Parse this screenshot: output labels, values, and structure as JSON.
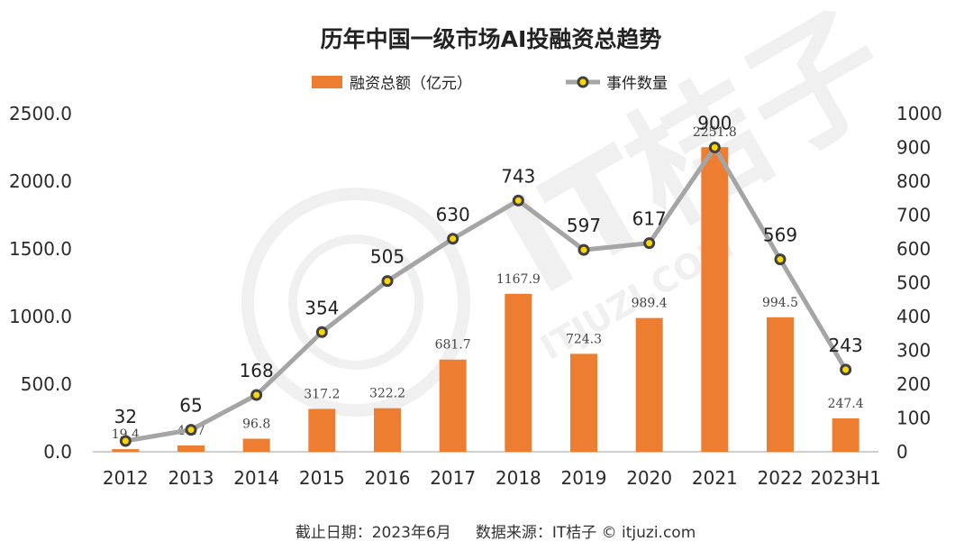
{
  "chart_data": {
    "type": "bar+line",
    "title": "历年中国一级市场AI投融资总趋势",
    "categories": [
      "2012",
      "2013",
      "2014",
      "2015",
      "2016",
      "2017",
      "2018",
      "2019",
      "2020",
      "2021",
      "2022",
      "2023H1"
    ],
    "series": [
      {
        "name": "融资总额（亿元）",
        "type": "bar",
        "axis": "left",
        "values": [
          19.4,
          46.7,
          96.8,
          317.2,
          322.2,
          681.7,
          1167.9,
          724.3,
          989.4,
          2251.8,
          994.5,
          247.4
        ],
        "labels": [
          "19.4",
          "46.7",
          "96.8",
          "317.2",
          "322.2",
          "681.7",
          "1167.9",
          "724.3",
          "989.4",
          "2251.8",
          "994.5",
          "247.4"
        ]
      },
      {
        "name": "事件数量",
        "type": "line",
        "axis": "right",
        "values": [
          32,
          65,
          168,
          354,
          505,
          630,
          743,
          597,
          617,
          900,
          569,
          243
        ],
        "labels": [
          "32",
          "65",
          "168",
          "354",
          "505",
          "630",
          "743",
          "597",
          "617",
          "900",
          "569",
          "243"
        ]
      }
    ],
    "y_left": {
      "range": [
        0,
        2500
      ],
      "ticks": [
        0,
        500,
        1000,
        1500,
        2000,
        2500
      ],
      "tick_labels": [
        "0.0",
        "500.0",
        "1000.0",
        "1500.0",
        "2000.0",
        "2500.0"
      ]
    },
    "y_right": {
      "range": [
        0,
        1000
      ],
      "ticks": [
        0,
        100,
        200,
        300,
        400,
        500,
        600,
        700,
        800,
        900,
        1000
      ],
      "tick_labels": [
        "0",
        "100",
        "200",
        "300",
        "400",
        "500",
        "600",
        "700",
        "800",
        "900",
        "1000"
      ]
    },
    "legend_position": "top-center",
    "grid": false
  },
  "footer": {
    "text": "截止日期：2023年6月     数据来源：IT桔子 © itjuzi.com"
  },
  "watermark": {
    "text": "IT桔子",
    "subtext": "ITJUZI.COM"
  },
  "colors": {
    "bar": "#ED7D31",
    "line": "#A5A5A5",
    "marker_fill": "#FFD700",
    "marker_edge": "#404040",
    "text": "#222222",
    "axis": "#BFBFBF"
  }
}
